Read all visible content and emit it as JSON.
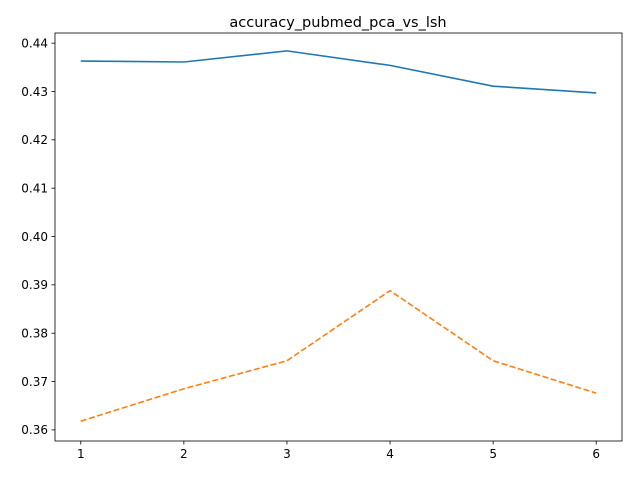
{
  "chart_data": {
    "type": "line",
    "title": "accuracy_pubmed_pca_vs_lsh",
    "xlabel": "",
    "ylabel": "",
    "x": [
      1,
      2,
      3,
      4,
      5,
      6
    ],
    "xlim": [
      0.75,
      6.25
    ],
    "ylim": [
      0.3577,
      0.4421
    ],
    "x_ticks": [
      "1",
      "2",
      "3",
      "4",
      "5",
      "6"
    ],
    "y_ticks": [
      "0.36",
      "0.37",
      "0.38",
      "0.39",
      "0.40",
      "0.41",
      "0.42",
      "0.43",
      "0.44"
    ],
    "grid": false,
    "legend": "none",
    "series": [
      {
        "values": [
          0.4363,
          0.4361,
          0.4384,
          0.4354,
          0.4311,
          0.4297
        ],
        "color": "#1f77b4",
        "style": "solid"
      },
      {
        "values": [
          0.3618,
          0.3685,
          0.3743,
          0.3888,
          0.3743,
          0.3676
        ],
        "color": "#ff7f0e",
        "style": "dashed"
      }
    ]
  }
}
